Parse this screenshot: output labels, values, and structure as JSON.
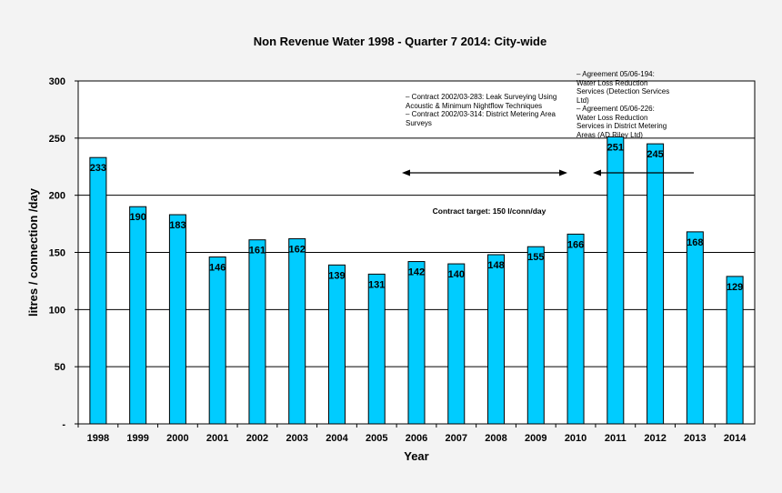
{
  "chart_data": {
    "type": "bar",
    "title": "Non Revenue Water 1998 - Quarter 7 2014: City-wide",
    "xlabel": "Year",
    "ylabel": "litres / connection /day",
    "categories": [
      "1998",
      "1999",
      "2000",
      "2001",
      "2002",
      "2003",
      "2004",
      "2005",
      "2006",
      "2007",
      "2008",
      "2009",
      "2010",
      "2011",
      "2012",
      "2013",
      "2014"
    ],
    "values": [
      233,
      190,
      183,
      146,
      161,
      162,
      139,
      131,
      142,
      140,
      148,
      155,
      166,
      251,
      245,
      168,
      129
    ],
    "ylim": [
      0,
      300
    ],
    "yticks": [
      "-",
      "50",
      "100",
      "150",
      "200",
      "250",
      "300"
    ],
    "grid": true,
    "bar_color": "#00ccff",
    "annotations": {
      "target": "Contract target: 150 l/conn/day",
      "contracts_2002": "– Contract 2002/03-283: Leak Surveying Using\n  Acoustic & Minimum Nightflow Techniques\n– Contract 2002/03-314: District Metering Area\n  Surveys",
      "agreements_0506": "– Agreement 05/06-194:\nWater Loss Reduction\nServices (Detection Services\nLtd)\n– Agreement 05/06-226:\nWater Loss Reduction\nServices in District Metering\nAreas (AD Riley Ltd)"
    }
  }
}
